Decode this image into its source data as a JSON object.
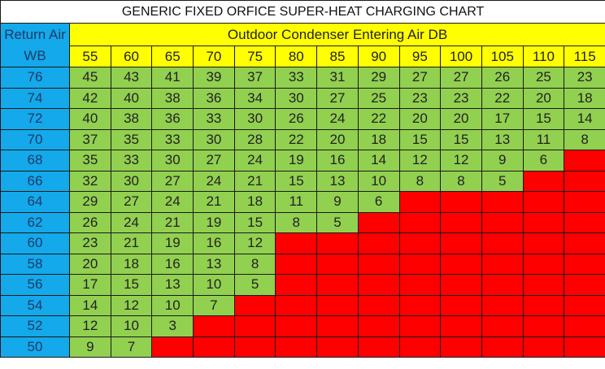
{
  "chart_data": {
    "type": "table",
    "title": "GENERIC FIXED ORFICE SUPER-HEAT CHARGING CHART",
    "row_header_label": "Return Air WB",
    "column_header_label": "Outdoor Condenser Entering Air DB",
    "columns": [
      55,
      60,
      65,
      70,
      75,
      80,
      85,
      90,
      95,
      100,
      105,
      110,
      115
    ],
    "rows": [
      76,
      74,
      72,
      70,
      68,
      66,
      64,
      62,
      60,
      58,
      56,
      54,
      52,
      50
    ],
    "values": [
      [
        45,
        43,
        41,
        39,
        37,
        33,
        31,
        29,
        27,
        27,
        26,
        25,
        23
      ],
      [
        42,
        40,
        38,
        36,
        34,
        30,
        27,
        25,
        23,
        23,
        22,
        20,
        18
      ],
      [
        40,
        38,
        36,
        33,
        30,
        26,
        24,
        22,
        20,
        20,
        17,
        15,
        14
      ],
      [
        37,
        35,
        33,
        30,
        28,
        22,
        20,
        18,
        15,
        15,
        13,
        11,
        8
      ],
      [
        35,
        33,
        30,
        27,
        24,
        19,
        16,
        14,
        12,
        12,
        9,
        6,
        null
      ],
      [
        32,
        30,
        27,
        24,
        21,
        15,
        13,
        10,
        8,
        8,
        5,
        null,
        null
      ],
      [
        29,
        27,
        24,
        21,
        18,
        11,
        9,
        6,
        null,
        null,
        null,
        null,
        null
      ],
      [
        26,
        24,
        21,
        19,
        15,
        8,
        5,
        null,
        null,
        null,
        null,
        null,
        null
      ],
      [
        23,
        21,
        19,
        16,
        12,
        null,
        null,
        null,
        null,
        null,
        null,
        null,
        null
      ],
      [
        20,
        18,
        16,
        13,
        8,
        null,
        null,
        null,
        null,
        null,
        null,
        null,
        null
      ],
      [
        17,
        15,
        13,
        10,
        5,
        null,
        null,
        null,
        null,
        null,
        null,
        null,
        null
      ],
      [
        14,
        12,
        10,
        7,
        null,
        null,
        null,
        null,
        null,
        null,
        null,
        null,
        null
      ],
      [
        12,
        10,
        3,
        null,
        null,
        null,
        null,
        null,
        null,
        null,
        null,
        null,
        null
      ],
      [
        9,
        7,
        null,
        null,
        null,
        null,
        null,
        null,
        null,
        null,
        null,
        null,
        null
      ]
    ],
    "colors": {
      "row_header": "#13a9ea",
      "column_header": "#ffff00",
      "valid_cell": "#92d050",
      "no_value_cell": "#ff0000"
    }
  }
}
